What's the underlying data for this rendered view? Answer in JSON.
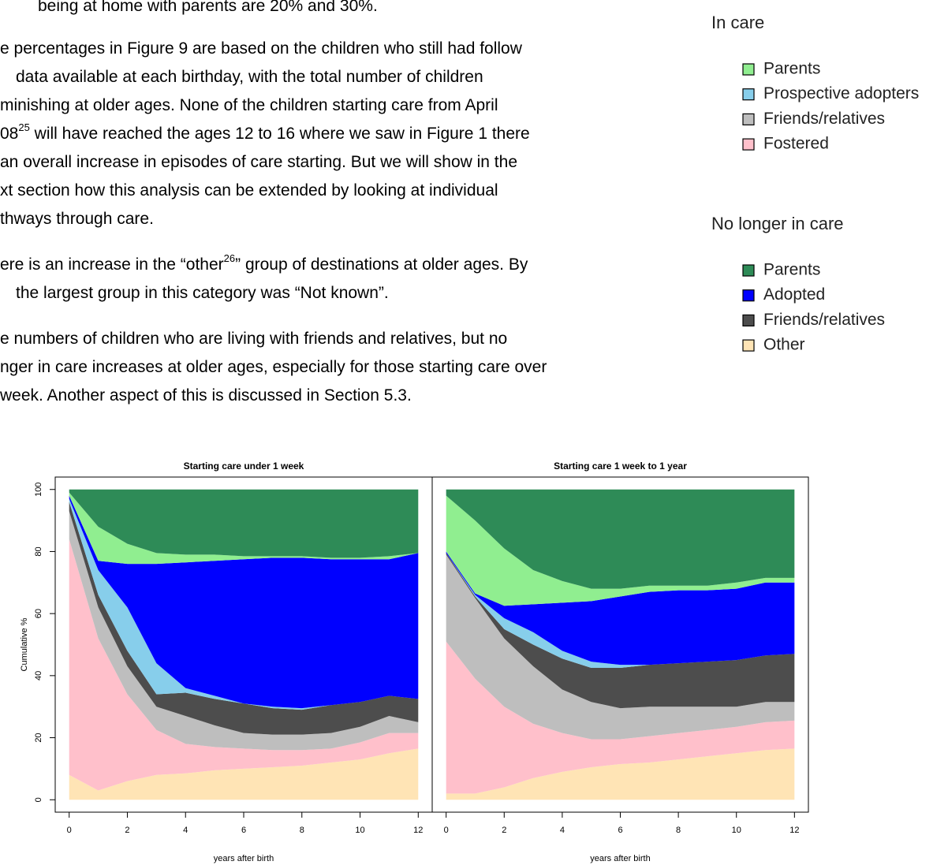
{
  "body": {
    "paragraphs": [
      [
        [
          "being at home with parents are 20% and 30%."
        ]
      ],
      [
        [
          "e percentages in Figure 9 are based on the children who still had follow"
        ],
        [
          "data available at each birthday, with the total number of children"
        ],
        [
          "minishing at older ages. None of the children starting care from April"
        ],
        [
          "08",
          {
            "sup": "25"
          },
          " will have reached the ages 12 to 16 where we saw in Figure 1 there"
        ],
        [
          "an overall increase in episodes of care starting. But we will show in the"
        ],
        [
          "xt section how this analysis can be extended by looking at individual"
        ],
        [
          "thways through care."
        ]
      ],
      [
        [
          "ere is an increase in the “other",
          {
            "sup": "26"
          },
          "” group of destinations at older ages. By"
        ],
        [
          "the largest group in this category was “Not known”."
        ]
      ],
      [
        [
          "e numbers of children who are living with friends and relatives, but no"
        ],
        [
          "nger in care increases at older ages, especially for those starting care over"
        ],
        [
          "week. Another aspect of this is discussed in Section 5.3."
        ]
      ]
    ]
  },
  "legend": {
    "groups": [
      {
        "title": "In care",
        "items": [
          {
            "name": "Parents",
            "color": "#90EE90"
          },
          {
            "name": "Prospective adopters",
            "color": "#87CEEB"
          },
          {
            "name": "Friends/relatives",
            "color": "#BEBEBE"
          },
          {
            "name": "Fostered",
            "color": "#FFC0CB"
          }
        ]
      },
      {
        "title": "No longer in care",
        "items": [
          {
            "name": "Parents",
            "color": "#2E8B57"
          },
          {
            "name": "Adopted",
            "color": "#0000FF"
          },
          {
            "name": "Friends/relatives",
            "color": "#4D4D4D"
          },
          {
            "name": "Other",
            "color": "#FFE4B5"
          }
        ]
      }
    ]
  },
  "chart_data": [
    {
      "type": "area",
      "stacked": true,
      "title": "Starting care under 1 week",
      "xlabel": "years after birth",
      "ylabel": "Cumulative %",
      "x": [
        0,
        1,
        2,
        3,
        4,
        5,
        6,
        7,
        8,
        9,
        10,
        11,
        12
      ],
      "xlim": [
        -0.48,
        12.48
      ],
      "xticks": [
        0,
        2,
        4,
        6,
        8,
        10,
        12
      ],
      "ylim": [
        -4,
        104
      ],
      "yticks": [
        0,
        20,
        40,
        60,
        80,
        100
      ],
      "series": [
        {
          "color": "#FFE4B5",
          "values": [
            8,
            3,
            6,
            8,
            8.5,
            9.5,
            10,
            10.5,
            11,
            12,
            13,
            15,
            16.5
          ]
        },
        {
          "color": "#FFC0CB",
          "values": [
            76,
            49,
            28,
            14.5,
            9.5,
            7.5,
            6.5,
            5.5,
            5,
            4.5,
            5.5,
            6.5,
            5
          ]
        },
        {
          "color": "#BEBEBE",
          "values": [
            9,
            10,
            9,
            7.5,
            9,
            7,
            5,
            5,
            5,
            5,
            5,
            5.5,
            3.5
          ]
        },
        {
          "color": "#4D4D4D",
          "values": [
            3,
            4,
            5,
            4,
            7.5,
            8.5,
            9.5,
            8.5,
            8,
            9,
            8,
            6.5,
            7.5
          ]
        },
        {
          "color": "#87CEEB",
          "values": [
            1,
            8,
            14,
            10,
            1.5,
            1,
            0,
            0.5,
            0.5,
            0,
            0,
            0,
            0
          ]
        },
        {
          "color": "#0000FF",
          "values": [
            1,
            3,
            14,
            32,
            40.5,
            43.5,
            46.5,
            48,
            48.5,
            47,
            46,
            44,
            47
          ]
        },
        {
          "color": "#90EE90",
          "values": [
            1,
            11,
            6.5,
            3.5,
            2.5,
            2,
            1,
            0.5,
            0.5,
            0.5,
            0.5,
            1,
            0
          ]
        },
        {
          "color": "#2E8B57",
          "values": [
            1,
            12,
            17.5,
            20.5,
            21,
            21,
            21.5,
            21.5,
            21.5,
            22,
            22,
            21.5,
            20.5
          ]
        }
      ]
    },
    {
      "type": "area",
      "stacked": true,
      "title": "Starting care 1 week to 1 year",
      "xlabel": "years after birth",
      "x": [
        0,
        1,
        2,
        3,
        4,
        5,
        6,
        7,
        8,
        9,
        10,
        11,
        12
      ],
      "xlim": [
        -0.48,
        12.48
      ],
      "xticks": [
        0,
        2,
        4,
        6,
        8,
        10,
        12
      ],
      "ylim": [
        -4,
        104
      ],
      "series": [
        {
          "color": "#FFE4B5",
          "values": [
            2,
            2,
            4,
            7,
            9,
            10.5,
            11.5,
            12,
            13,
            14,
            15,
            16,
            16.5
          ]
        },
        {
          "color": "#FFC0CB",
          "values": [
            49,
            37,
            26,
            17.5,
            12.5,
            9,
            8,
            8.5,
            8.5,
            8.5,
            8.5,
            9,
            9
          ]
        },
        {
          "color": "#BEBEBE",
          "values": [
            28,
            26,
            22,
            18.5,
            14,
            12,
            10,
            9.5,
            8.5,
            7.5,
            6.5,
            6.5,
            6
          ]
        },
        {
          "color": "#4D4D4D",
          "values": [
            0.5,
            0.5,
            3,
            7,
            10,
            11,
            13,
            13.5,
            14,
            14.5,
            15,
            15,
            15.5
          ]
        },
        {
          "color": "#87CEEB",
          "values": [
            0,
            0.5,
            3.5,
            4,
            2.5,
            2,
            1,
            0,
            0,
            0,
            0,
            0,
            0
          ]
        },
        {
          "color": "#0000FF",
          "values": [
            0.5,
            0.5,
            4,
            9,
            15.5,
            19.5,
            22,
            23.5,
            23.5,
            23,
            23,
            23.5,
            23
          ]
        },
        {
          "color": "#90EE90",
          "values": [
            18,
            23.5,
            18.5,
            11,
            7,
            4,
            2.5,
            2,
            1.5,
            1.5,
            2,
            1.5,
            1.5
          ]
        },
        {
          "color": "#2E8B57",
          "values": [
            2,
            10,
            19,
            26,
            29.5,
            32,
            32,
            31,
            31,
            31,
            30,
            28.5,
            28.5
          ]
        }
      ]
    }
  ]
}
